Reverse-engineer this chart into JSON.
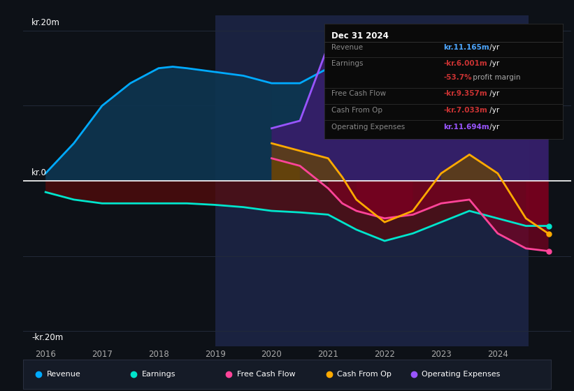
{
  "bg_color": "#0d1117",
  "plot_bg_color": "#0d1117",
  "ylabel_top": "kr.20m",
  "ylabel_mid": "kr.0",
  "ylabel_bot": "-kr.20m",
  "years": [
    2016,
    2016.5,
    2017,
    2017.5,
    2018,
    2018.25,
    2018.5,
    2019,
    2019.5,
    2020,
    2020.5,
    2021,
    2021.25,
    2021.5,
    2022,
    2022.5,
    2023,
    2023.5,
    2024,
    2024.5,
    2024.9
  ],
  "revenue": [
    1,
    5,
    10,
    13,
    15,
    15.2,
    15,
    14.5,
    14,
    13,
    13,
    15,
    15,
    14,
    13,
    12,
    11,
    12,
    11.5,
    11,
    11.165
  ],
  "earnings": [
    -1.5,
    -2.5,
    -3,
    -3,
    -3,
    -3,
    -3,
    -3.2,
    -3.5,
    -4,
    -4.2,
    -4.5,
    -5.5,
    -6.5,
    -8,
    -7,
    -5.5,
    -4,
    -5,
    -6,
    -6.001
  ],
  "free_cash_flow": [
    null,
    null,
    null,
    null,
    null,
    null,
    null,
    null,
    null,
    3,
    2,
    -1,
    -3,
    -4,
    -5,
    -4.5,
    -3,
    -2.5,
    -7,
    -9,
    -9.357
  ],
  "cash_from_op": [
    null,
    null,
    null,
    null,
    null,
    null,
    null,
    null,
    null,
    5,
    4,
    3,
    0.5,
    -2.5,
    -5.5,
    -4,
    1,
    3.5,
    1,
    -5,
    -7.033
  ],
  "op_expenses": [
    null,
    null,
    null,
    null,
    null,
    null,
    null,
    null,
    null,
    7,
    8,
    18,
    17,
    15,
    13,
    13,
    12,
    12.5,
    13,
    12,
    11.694
  ],
  "revenue_color": "#00aaff",
  "earnings_color": "#00e5cc",
  "free_cash_flow_color": "#ff4499",
  "cash_from_op_color": "#ffaa00",
  "op_expenses_color": "#9955ff",
  "revenue_fill_color": "#0d3550",
  "earnings_fill_color": "#5a0a0a",
  "free_cash_flow_fill_color": "#7a0020",
  "cash_from_op_fill_color": "#6a4800",
  "op_expenses_fill_color": "#3d1a6e",
  "zero_line_color": "#ffffff",
  "grid_color": "#222a3a",
  "highlight_start": 2019,
  "highlight_end": 2024.55,
  "highlight_color": "#1a2240",
  "info_box": {
    "title": "Dec 31 2024",
    "rows": [
      {
        "label": "Revenue",
        "value": "kr.11.165m",
        "value_color": "#4da6ff",
        "suffix": " /yr"
      },
      {
        "label": "Earnings",
        "value": "-kr.6.001m",
        "value_color": "#cc3333",
        "suffix": " /yr"
      },
      {
        "label": "",
        "value": "-53.7%",
        "value_color": "#cc3333",
        "suffix": " profit margin",
        "suffix_color": "#aaaaaa"
      },
      {
        "label": "Free Cash Flow",
        "value": "-kr.9.357m",
        "value_color": "#cc3333",
        "suffix": " /yr"
      },
      {
        "label": "Cash From Op",
        "value": "-kr.7.033m",
        "value_color": "#cc3333",
        "suffix": " /yr"
      },
      {
        "label": "Operating Expenses",
        "value": "kr.11.694m",
        "value_color": "#9955ff",
        "suffix": " /yr"
      }
    ]
  },
  "legend": [
    {
      "label": "Revenue",
      "color": "#00aaff"
    },
    {
      "label": "Earnings",
      "color": "#00e5cc"
    },
    {
      "label": "Free Cash Flow",
      "color": "#ff4499"
    },
    {
      "label": "Cash From Op",
      "color": "#ffaa00"
    },
    {
      "label": "Operating Expenses",
      "color": "#9955ff"
    }
  ],
  "xmin": 2015.6,
  "xmax": 2025.3,
  "ymin": -22,
  "ymax": 22
}
